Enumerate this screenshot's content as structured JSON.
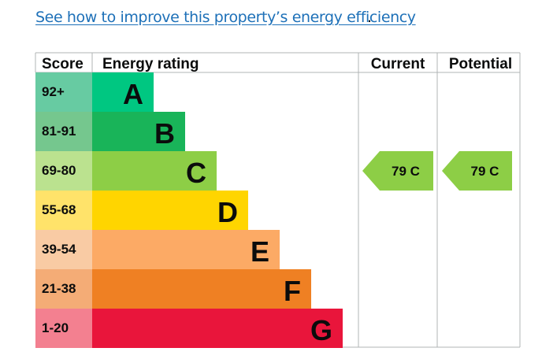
{
  "link": {
    "text": "See how to improve this property’s energy efficiency",
    "trailing": "."
  },
  "chart_data": {
    "type": "bar",
    "headers": {
      "score": "Score",
      "rating": "Energy rating",
      "current": "Current",
      "potential": "Potential"
    },
    "bands": [
      {
        "range": "92+",
        "letter": "A",
        "color": "#00c781",
        "light": "#67cba2"
      },
      {
        "range": "81-91",
        "letter": "B",
        "color": "#19b459",
        "light": "#75c78e"
      },
      {
        "range": "69-80",
        "letter": "C",
        "color": "#8dce46",
        "light": "#bbe28f"
      },
      {
        "range": "55-68",
        "letter": "D",
        "color": "#ffd500",
        "light": "#ffe36a"
      },
      {
        "range": "39-54",
        "letter": "E",
        "color": "#fcaa65",
        "light": "#f9cba4"
      },
      {
        "range": "21-38",
        "letter": "F",
        "color": "#ef8023",
        "light": "#f4ac76"
      },
      {
        "range": "1-20",
        "letter": "G",
        "color": "#e9153b",
        "light": "#f38090"
      }
    ],
    "current": {
      "value": 79,
      "band": "C",
      "label": "79 C"
    },
    "potential": {
      "value": 79,
      "band": "C",
      "label": "79 C"
    }
  }
}
